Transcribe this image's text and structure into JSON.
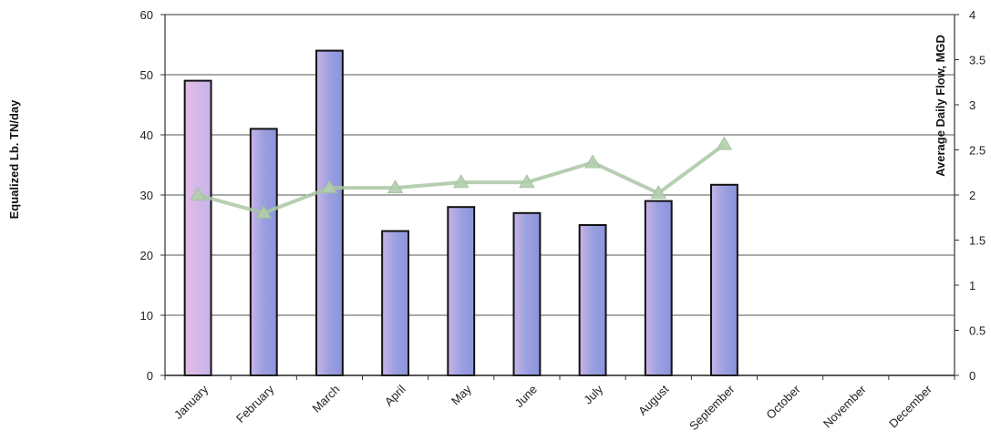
{
  "chart_data": {
    "type": "bar",
    "categories": [
      "January",
      "February",
      "March",
      "April",
      "May",
      "June",
      "July",
      "August",
      "September",
      "October",
      "November",
      "December"
    ],
    "series": [
      {
        "kind": "bar",
        "axis": "left",
        "values": [
          49,
          41,
          54,
          24,
          28,
          27,
          25,
          29,
          31.7,
          null,
          null,
          null
        ]
      },
      {
        "kind": "line",
        "axis": "right",
        "values": [
          2.0,
          1.8,
          2.08,
          2.08,
          2.14,
          2.14,
          2.36,
          2.02,
          2.56,
          null,
          null,
          null
        ]
      }
    ],
    "ylabel": "Equalized Lb. TN/day",
    "y2label": "Average Daily Flow, MGD",
    "ylim": [
      0,
      60
    ],
    "y2lim": [
      0,
      4
    ],
    "yticks": [
      "0",
      "10",
      "20",
      "30",
      "40",
      "50",
      "60"
    ],
    "y2ticks": [
      "0",
      "0.5",
      "1",
      "1.5",
      "2",
      "2.5",
      "3",
      "3.5",
      "4"
    ],
    "grid": true,
    "colors": {
      "bar": "#8e94dc",
      "bar_light": "#d6b2e0",
      "bar_edge": "#111111",
      "line": "#a9c7a3",
      "marker": "#b3cfae",
      "grid": "#555555"
    }
  }
}
